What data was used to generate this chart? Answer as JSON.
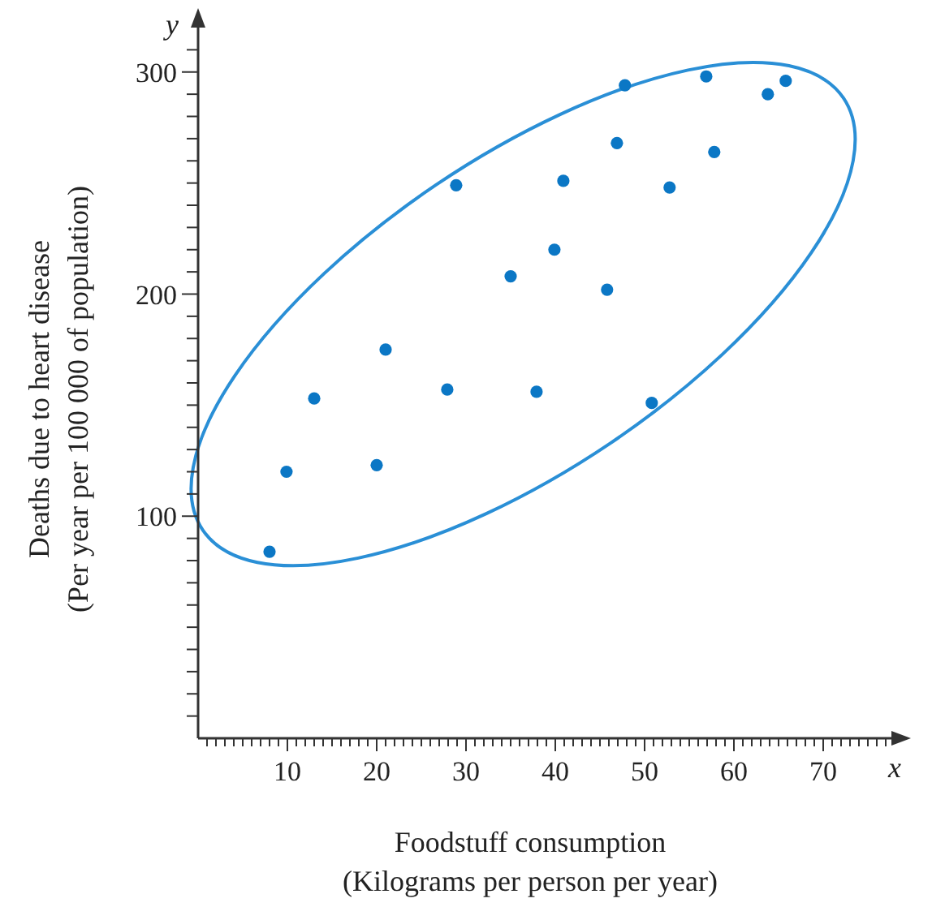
{
  "chart_data": {
    "type": "scatter",
    "xlabel": "Foodstuff consumption\n(Kilograms per person per year)",
    "ylabel": "Deaths due to heart disease\n(Per year per 100 000 of population)",
    "annotations": [
      "x",
      "y"
    ],
    "x": [
      47.8,
      56.9,
      63.8,
      65.8,
      46.9,
      57.8,
      28.9,
      40.9,
      52.8,
      39.9,
      35.0,
      45.8,
      21.0,
      27.9,
      13.0,
      37.9,
      50.8,
      9.9,
      20.0,
      8.0
    ],
    "series": [
      {
        "color": "#0b77c5",
        "values": [
          294,
          298,
          290,
          296,
          268,
          264,
          249,
          251,
          248,
          220,
          208,
          202,
          175,
          157,
          153,
          156,
          151,
          120,
          123,
          84
        ]
      }
    ],
    "marker": "circle",
    "grid": false,
    "xlim": [
      0,
      78
    ],
    "ylim": [
      0,
      320
    ],
    "xticks": [
      {
        "value": 1,
        "label": null
      },
      {
        "value": 2,
        "label": null
      },
      {
        "value": 3,
        "label": null
      },
      {
        "value": 4,
        "label": null
      },
      {
        "value": 5,
        "label": null
      },
      {
        "value": 6,
        "label": null
      },
      {
        "value": 7,
        "label": null
      },
      {
        "value": 8,
        "label": null
      },
      {
        "value": 9,
        "label": null
      },
      10,
      {
        "value": 11,
        "label": null
      },
      {
        "value": 12,
        "label": null
      },
      {
        "value": 13,
        "label": null
      },
      {
        "value": 14,
        "label": null
      },
      {
        "value": 15,
        "label": null
      },
      {
        "value": 16,
        "label": null
      },
      {
        "value": 17,
        "label": null
      },
      {
        "value": 18,
        "label": null
      },
      {
        "value": 19,
        "label": null
      },
      20,
      {
        "value": 21,
        "label": null
      },
      {
        "value": 22,
        "label": null
      },
      {
        "value": 23,
        "label": null
      },
      {
        "value": 24,
        "label": null
      },
      {
        "value": 25,
        "label": null
      },
      {
        "value": 26,
        "label": null
      },
      {
        "value": 27,
        "label": null
      },
      {
        "value": 28,
        "label": null
      },
      {
        "value": 29,
        "label": null
      },
      30,
      {
        "value": 31,
        "label": null
      },
      {
        "value": 32,
        "label": null
      },
      {
        "value": 33,
        "label": null
      },
      {
        "value": 34,
        "label": null
      },
      {
        "value": 35,
        "label": null
      },
      {
        "value": 36,
        "label": null
      },
      {
        "value": 37,
        "label": null
      },
      {
        "value": 38,
        "label": null
      },
      {
        "value": 39,
        "label": null
      },
      40,
      {
        "value": 41,
        "label": null
      },
      {
        "value": 42,
        "label": null
      },
      {
        "value": 43,
        "label": null
      },
      {
        "value": 44,
        "label": null
      },
      {
        "value": 45,
        "label": null
      },
      {
        "value": 46,
        "label": null
      },
      {
        "value": 47,
        "label": null
      },
      {
        "value": 48,
        "label": null
      },
      {
        "value": 49,
        "label": null
      },
      50,
      {
        "value": 51,
        "label": null
      },
      {
        "value": 52,
        "label": null
      },
      {
        "value": 53,
        "label": null
      },
      {
        "value": 54,
        "label": null
      },
      {
        "value": 55,
        "label": null
      },
      {
        "value": 56,
        "label": null
      },
      {
        "value": 57,
        "label": null
      },
      {
        "value": 58,
        "label": null
      },
      {
        "value": 59,
        "label": null
      },
      60,
      {
        "value": 61,
        "label": null
      },
      {
        "value": 62,
        "label": null
      },
      {
        "value": 63,
        "label": null
      },
      {
        "value": 64,
        "label": null
      },
      {
        "value": 65,
        "label": null
      },
      {
        "value": 66,
        "label": null
      },
      {
        "value": 67,
        "label": null
      },
      {
        "value": 68,
        "label": null
      },
      {
        "value": 69,
        "label": null
      },
      70,
      {
        "value": 71,
        "label": null
      },
      {
        "value": 72,
        "label": null
      },
      {
        "value": 73,
        "label": null
      },
      {
        "value": 74,
        "label": null
      },
      {
        "value": 75,
        "label": null
      },
      {
        "value": 76,
        "label": null
      },
      {
        "value": 77,
        "label": null
      }
    ],
    "yticks": [
      {
        "value": 10,
        "label": null
      },
      {
        "value": 20,
        "label": null
      },
      {
        "value": 30,
        "label": null
      },
      {
        "value": 40,
        "label": null
      },
      {
        "value": 50,
        "label": null
      },
      {
        "value": 60,
        "label": null
      },
      {
        "value": 70,
        "label": null
      },
      {
        "value": 80,
        "label": null
      },
      {
        "value": 90,
        "label": null
      },
      100,
      {
        "value": 110,
        "label": null
      },
      {
        "value": 120,
        "label": null
      },
      {
        "value": 130,
        "label": null
      },
      {
        "value": 140,
        "label": null
      },
      {
        "value": 150,
        "label": null
      },
      {
        "value": 160,
        "label": null
      },
      {
        "value": 170,
        "label": null
      },
      {
        "value": 180,
        "label": null
      },
      {
        "value": 190,
        "label": null
      },
      200,
      {
        "value": 210,
        "label": null
      },
      {
        "value": 220,
        "label": null
      },
      {
        "value": 230,
        "label": null
      },
      {
        "value": 240,
        "label": null
      },
      {
        "value": 250,
        "label": null
      },
      {
        "value": 260,
        "label": null
      },
      {
        "value": 270,
        "label": null
      },
      {
        "value": 280,
        "label": null
      },
      {
        "value": 290,
        "label": null
      },
      300,
      {
        "value": 310,
        "label": null
      }
    ]
  }
}
